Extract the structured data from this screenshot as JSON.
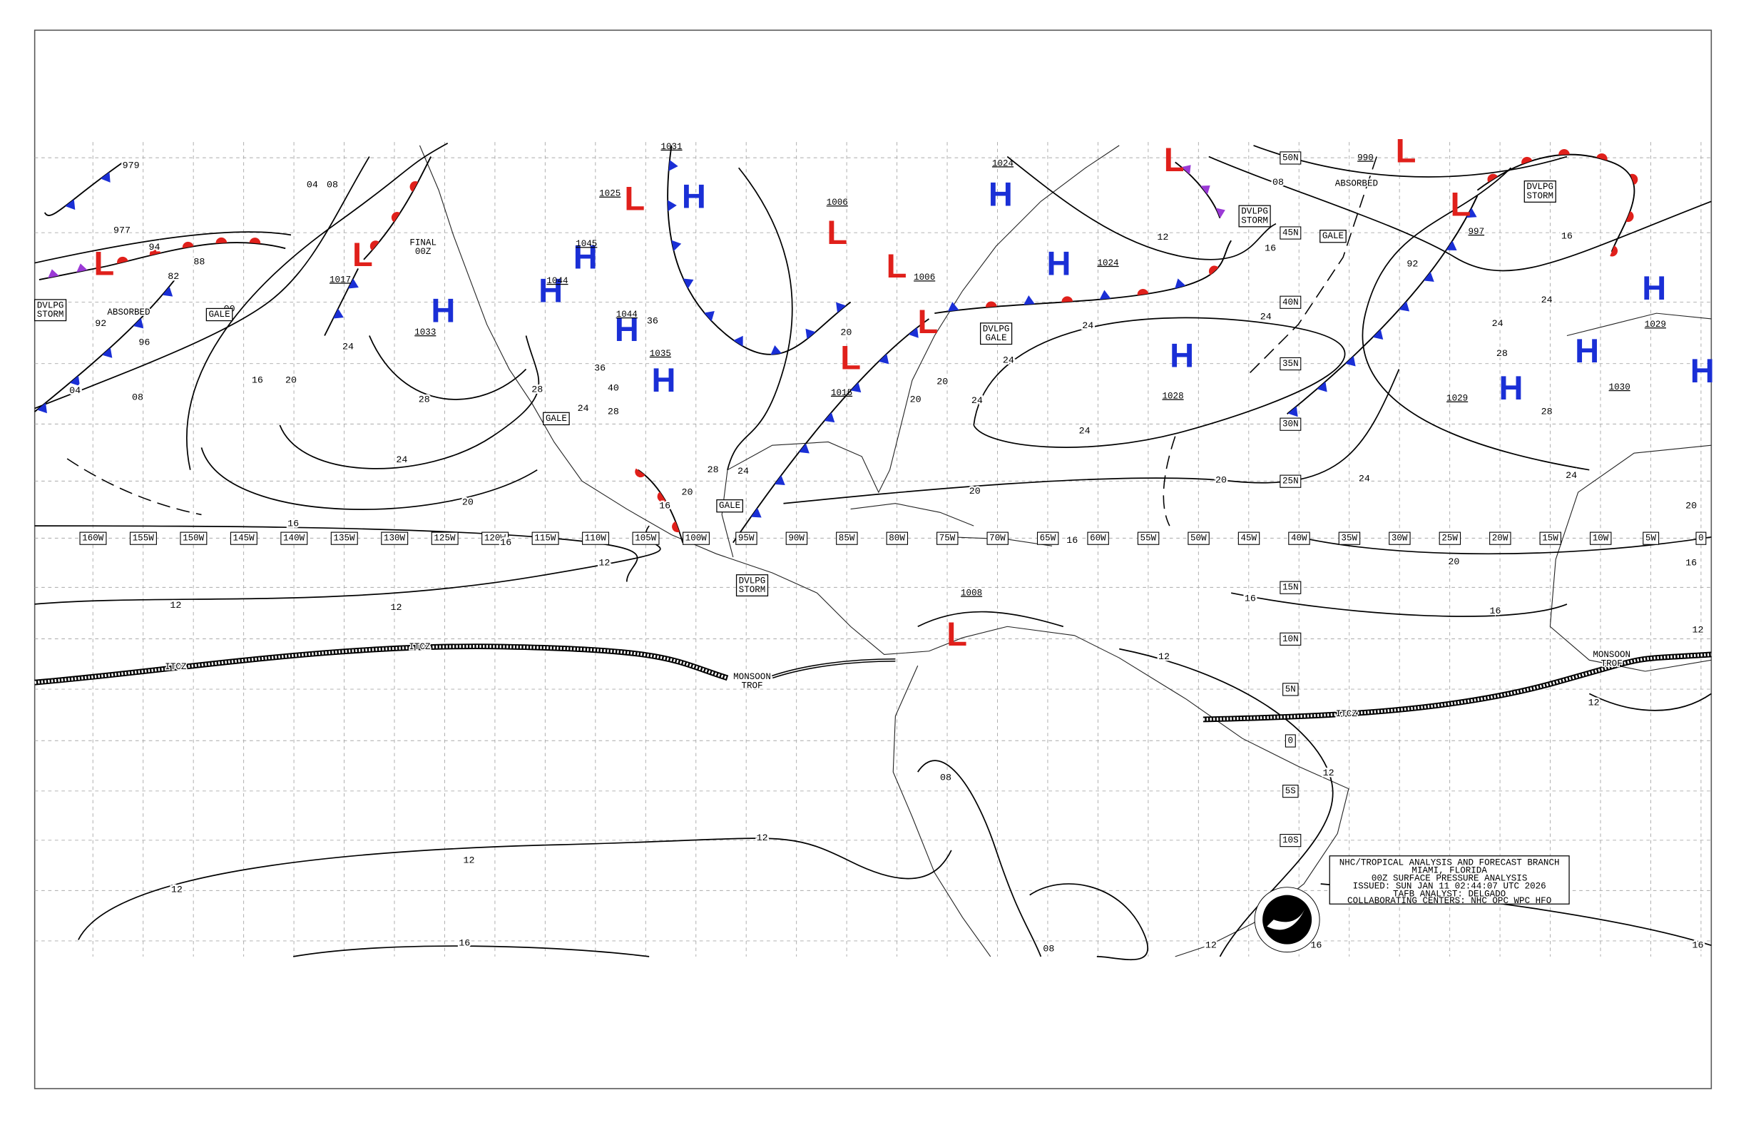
{
  "map": {
    "longitude_labels": [
      "160W",
      "155W",
      "150W",
      "145W",
      "140W",
      "135W",
      "130W",
      "125W",
      "120W",
      "115W",
      "110W",
      "105W",
      "100W",
      "95W",
      "90W",
      "85W",
      "80W",
      "75W",
      "70W",
      "65W",
      "60W",
      "55W",
      "50W",
      "45W",
      "40W",
      "35W",
      "30W",
      "25W",
      "20W",
      "15W",
      "10W",
      "5W",
      "0"
    ],
    "latitude_labels": [
      "50N",
      "45N",
      "40N",
      "35N",
      "30N",
      "25N",
      "15N",
      "10N",
      "5N",
      "0",
      "5S",
      "10S"
    ],
    "centers": [
      {
        "symbol": "L"
      },
      {
        "symbol": "L",
        "pressure": "1017"
      },
      {
        "symbol": "H",
        "pressure": "1033"
      },
      {
        "symbol": "H",
        "pressure": "1044"
      },
      {
        "symbol": "H",
        "pressure": "1044"
      },
      {
        "symbol": "H",
        "pressure": "1035"
      },
      {
        "symbol": "H",
        "pressure": "1031"
      },
      {
        "symbol": "L",
        "pressure": "1025"
      },
      {
        "symbol": "H",
        "pressure": "1045"
      },
      {
        "symbol": "H",
        "pressure": "1024"
      },
      {
        "symbol": "H",
        "pressure": "1024"
      },
      {
        "symbol": "L",
        "pressure": "1006"
      },
      {
        "symbol": "L",
        "pressure": "1006"
      },
      {
        "symbol": "L"
      },
      {
        "symbol": "L",
        "pressure": "1015"
      },
      {
        "symbol": "H",
        "pressure": "1028"
      },
      {
        "symbol": "L"
      },
      {
        "symbol": "L",
        "pressure": "990"
      },
      {
        "symbol": "L",
        "pressure": "997"
      },
      {
        "symbol": "H",
        "pressure": "1029"
      },
      {
        "symbol": "H",
        "pressure": "1030"
      },
      {
        "symbol": "H",
        "pressure": "1029"
      },
      {
        "symbol": "H"
      },
      {
        "symbol": "L",
        "pressure": "1008"
      }
    ],
    "isobar_labels": [
      "979",
      "04",
      "08",
      "977",
      "94",
      "82",
      "88",
      "00",
      "92",
      "96",
      "04",
      "08",
      "16",
      "20",
      "24",
      "28",
      "24",
      "20",
      "16",
      "16",
      "12",
      "12",
      "12",
      "12",
      "12",
      "12",
      "16",
      "08",
      "08",
      "12",
      "16",
      "16",
      "12",
      "12",
      "12",
      "12",
      "16",
      "16",
      "20",
      "16",
      "20",
      "24",
      "20",
      "20",
      "24",
      "24",
      "24",
      "24",
      "24",
      "24",
      "24",
      "28",
      "28",
      "24",
      "16",
      "16",
      "12",
      "08",
      "92",
      "20",
      "20",
      "20",
      "16",
      "16",
      "20",
      "28",
      "24",
      "36",
      "40",
      "36",
      "28",
      "24",
      "28"
    ],
    "feature_labels": [
      {
        "lines": [
          "FINAL",
          "00Z"
        ],
        "boxed": false
      },
      {
        "lines": [
          "DVLPG",
          "STORM"
        ],
        "boxed": true
      },
      {
        "lines": [
          "ABSORBED"
        ],
        "boxed": false
      },
      {
        "lines": [
          "GALE"
        ],
        "boxed": true
      },
      {
        "lines": [
          "GALE"
        ],
        "boxed": true
      },
      {
        "lines": [
          "GALE"
        ],
        "boxed": true
      },
      {
        "lines": [
          "DVLPG",
          "STORM"
        ],
        "boxed": true
      },
      {
        "lines": [
          "DVLPG",
          "GALE"
        ],
        "boxed": true
      },
      {
        "lines": [
          "DVLPG",
          "STORM"
        ],
        "boxed": true
      },
      {
        "lines": [
          "GALE"
        ],
        "boxed": true
      },
      {
        "lines": [
          "DVLPG",
          "STORM"
        ],
        "boxed": true
      },
      {
        "lines": [
          "ABSORBED"
        ],
        "boxed": false
      },
      {
        "lines": [
          "ITCZ"
        ],
        "boxed": false
      },
      {
        "lines": [
          "ITCZ"
        ],
        "boxed": false
      },
      {
        "lines": [
          "ITCZ"
        ],
        "boxed": false
      },
      {
        "lines": [
          "MONSOON",
          "TROF"
        ],
        "boxed": false
      },
      {
        "lines": [
          "MONSOON",
          "TROF"
        ],
        "boxed": false
      }
    ],
    "info_box": [
      "NHC/TROPICAL ANALYSIS AND FORECAST BRANCH",
      "MIAMI, FLORIDA",
      "00Z SURFACE PRESSURE ANALYSIS",
      "ISSUED: SUN JAN 11 02:44:07 UTC 2026",
      "TAFB ANALYST: DELGADO",
      "COLLABORATING CENTERS: NHC OPC WPC HFO"
    ]
  }
}
